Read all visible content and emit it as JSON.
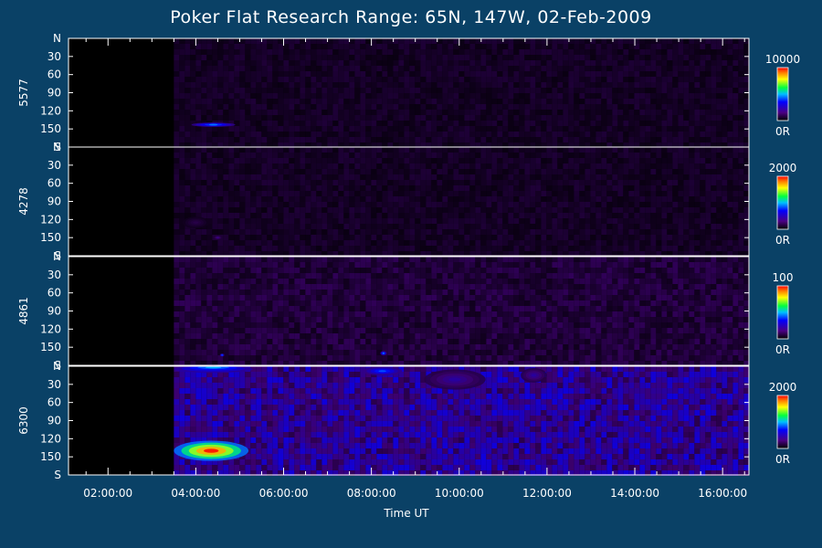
{
  "chart_data": {
    "type": "heatmap",
    "title": "Poker Flat Research Range: 65N, 147W, 02-Feb-2009",
    "xlabel": "Time UT",
    "x_ticks": [
      "02:00:00",
      "04:00:00",
      "06:00:00",
      "08:00:00",
      "10:00:00",
      "12:00:00",
      "14:00:00",
      "16:00:00"
    ],
    "x_range_hours": [
      1.1,
      16.6
    ],
    "y_ticks": [
      "N",
      "30",
      "60",
      "90",
      "120",
      "150",
      "S"
    ],
    "y_range": [
      0,
      180
    ],
    "panels": [
      {
        "name": "5577",
        "colorbar": {
          "max_label": "10000",
          "min_label": "0R",
          "max": 10000
        },
        "data_start_hour": 3.5,
        "features": [
          {
            "t_start": 3.9,
            "t_end": 4.9,
            "y": 143,
            "intensity": 0.45,
            "spread_y": 3
          }
        ],
        "background": 0.05
      },
      {
        "name": "4278",
        "colorbar": {
          "max_label": "2000",
          "min_label": "0R",
          "max": 2000
        },
        "data_start_hour": 3.5,
        "features": [
          {
            "t_start": 3.7,
            "t_end": 4.3,
            "y": 125,
            "intensity": 0.1,
            "spread_y": 8
          },
          {
            "t_start": 4.4,
            "t_end": 4.6,
            "y": 150,
            "intensity": 0.18,
            "spread_y": 3
          }
        ],
        "background": 0.05
      },
      {
        "name": "4861",
        "colorbar": {
          "max_label": "100",
          "min_label": "0R",
          "max": 100
        },
        "data_start_hour": 3.5,
        "features": [
          {
            "t_start": 4.55,
            "t_end": 4.65,
            "y": 163,
            "intensity": 0.4,
            "spread_y": 2
          },
          {
            "t_start": 8.2,
            "t_end": 8.35,
            "y": 160,
            "intensity": 0.45,
            "spread_y": 3
          }
        ],
        "background": 0.08
      },
      {
        "name": "6300",
        "colorbar": {
          "max_label": "2000",
          "min_label": "0R",
          "max": 2000
        },
        "data_start_hour": 3.5,
        "features": [
          {
            "t_start": 3.5,
            "t_end": 5.3,
            "y": 2,
            "intensity": 0.5,
            "spread_y": 5
          },
          {
            "t_start": 7.8,
            "t_end": 8.7,
            "y": 8,
            "intensity": 0.42,
            "spread_y": 6
          },
          {
            "t_start": 9.2,
            "t_end": 10.6,
            "y": 22,
            "intensity": 0.22,
            "spread_y": 14
          },
          {
            "t_start": 11.4,
            "t_end": 12.0,
            "y": 15,
            "intensity": 0.22,
            "spread_y": 10
          },
          {
            "t_start": 3.5,
            "t_end": 5.2,
            "y": 140,
            "intensity": 1.0,
            "spread_y": 14
          }
        ],
        "background": 0.2
      }
    ]
  }
}
